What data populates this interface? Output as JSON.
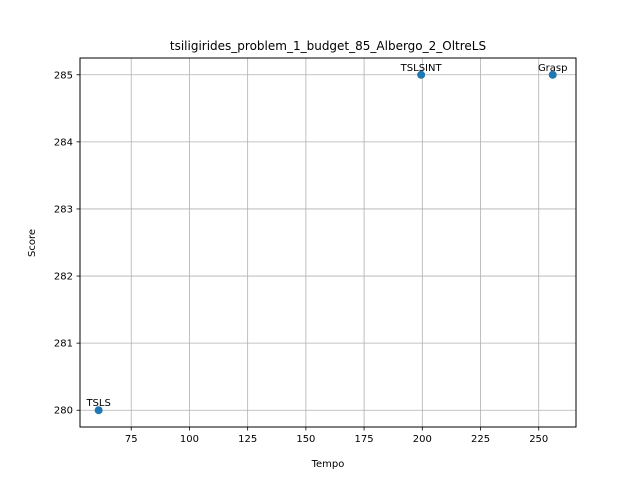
{
  "chart_data": {
    "type": "scatter",
    "title": "tsiligirides_problem_1_budget_85_Albergo_2_OltreLS",
    "xlabel": "Tempo",
    "ylabel": "Score",
    "xlim": [
      53,
      266
    ],
    "ylim": [
      279.75,
      285.25
    ],
    "xticks": [
      75,
      100,
      125,
      150,
      175,
      200,
      225,
      250
    ],
    "yticks": [
      280,
      281,
      282,
      283,
      284,
      285
    ],
    "grid": true,
    "color": "#1f77b4",
    "points": [
      {
        "label": "TSLS",
        "x": 61,
        "y": 280
      },
      {
        "label": "TSLSINT",
        "x": 199.5,
        "y": 285
      },
      {
        "label": "Grasp",
        "x": 256,
        "y": 285
      }
    ]
  }
}
